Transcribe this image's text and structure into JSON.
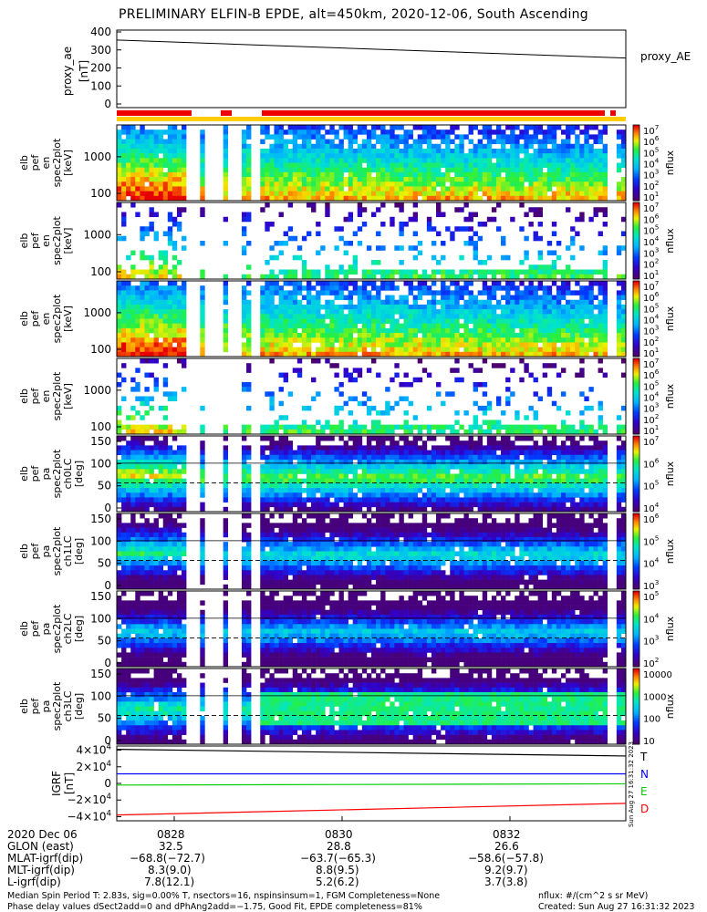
{
  "title": "PRELIMINARY ELFIN-B EPDE, alt=450km, 2020-12-06, South Ascending",
  "chart_data": {
    "type": "heatmap",
    "panels": [
      {
        "id": "proxy_ae",
        "ylabel": [
          "proxy_ae",
          "[nT]"
        ],
        "yticks": [
          "400",
          "300",
          "200",
          "100",
          "0"
        ],
        "series_name": "proxy_AE",
        "line": {
          "x": [
            0,
            1
          ],
          "y": [
            355,
            255
          ]
        }
      },
      {
        "id": "pef_en",
        "ylabel": [
          "elb",
          "pef",
          "en",
          "spec2plot",
          "[keV]"
        ],
        "yticks": [
          "1000",
          "100"
        ],
        "cb_ticks": [
          "10^7",
          "10^6",
          "10^5",
          "10^4",
          "10^3",
          "10^2",
          "10^1"
        ],
        "cb_label": "nflux"
      },
      {
        "id": "pef_perp",
        "ylabel": [
          "elb",
          "pef",
          "en",
          "spec2plot",
          "[keV]"
        ],
        "yticks": [
          "1000",
          "100"
        ],
        "cb_ticks": [
          "10^7",
          "10^6",
          "10^5",
          "10^4",
          "10^3",
          "10^2",
          "10^1"
        ],
        "cb_label": "nflux"
      },
      {
        "id": "pef_para",
        "ylabel": [
          "elb",
          "pef",
          "en",
          "spec2plot",
          "[keV]"
        ],
        "yticks": [
          "1000",
          "100"
        ],
        "cb_ticks": [
          "10^7",
          "10^6",
          "10^5",
          "10^4",
          "10^3",
          "10^2",
          "10^1"
        ],
        "cb_label": "nflux"
      },
      {
        "id": "pef_anti",
        "ylabel": [
          "elb",
          "pef",
          "en",
          "spec2plot",
          "[keV]"
        ],
        "yticks": [
          "1000",
          "100"
        ],
        "cb_ticks": [
          "10^7",
          "10^6",
          "10^5",
          "10^4",
          "10^3",
          "10^2",
          "10^1"
        ],
        "cb_label": "nflux"
      },
      {
        "id": "ch0",
        "ylabel": [
          "elb",
          "pef",
          "pa",
          "spec2plot",
          "ch0LC",
          "[deg]"
        ],
        "yticks": [
          "150",
          "100",
          "50",
          "0"
        ],
        "cb_ticks": [
          "10^7",
          "10^6",
          "10^5",
          "10^4"
        ],
        "cb_label": "nflux"
      },
      {
        "id": "ch1",
        "ylabel": [
          "elb",
          "pef",
          "pa",
          "spec2plot",
          "ch1LC",
          "[deg]"
        ],
        "yticks": [
          "150",
          "100",
          "50",
          "0"
        ],
        "cb_ticks": [
          "10^6",
          "10^5",
          "10^4",
          "10^3"
        ],
        "cb_label": "nflux"
      },
      {
        "id": "ch2",
        "ylabel": [
          "elb",
          "pef",
          "pa",
          "spec2plot",
          "ch2LC",
          "[deg]"
        ],
        "yticks": [
          "150",
          "100",
          "50",
          "0"
        ],
        "cb_ticks": [
          "10^5",
          "10^4",
          "10^3",
          "10^2"
        ],
        "cb_label": "nflux"
      },
      {
        "id": "ch3",
        "ylabel": [
          "elb",
          "pef",
          "pa",
          "spec2plot",
          "ch3LC",
          "[deg]"
        ],
        "yticks": [
          "150",
          "100",
          "50",
          "0"
        ],
        "cb_ticks": [
          "10000",
          "1000",
          "100",
          "10"
        ],
        "cb_label": "nflux"
      },
      {
        "id": "igrf",
        "ylabel": [
          "IGRF",
          "[nT]"
        ],
        "yticks": [
          "4×10^4",
          "2×10^4",
          "0",
          "−2×10^4",
          "−4×10^4"
        ],
        "legend": [
          "T",
          "N",
          "E",
          "D"
        ],
        "legend_colors": [
          "#000000",
          "#0000ff",
          "#00cc00",
          "#ff0000"
        ],
        "lines": [
          {
            "name": "T",
            "y": [
              41000,
              33000
            ]
          },
          {
            "name": "N",
            "y": [
              11500,
              11500
            ]
          },
          {
            "name": "E",
            "y": [
              -2000,
              -500
            ]
          },
          {
            "name": "D",
            "y": [
              -38000,
              -24000
            ]
          }
        ],
        "ylim": [
          -45000,
          45000
        ]
      }
    ],
    "x_ticks": [
      "0828",
      "0830",
      "0832"
    ],
    "side_stamp": "Sun Aug 27 16:31:32 2023"
  },
  "orbit_table": {
    "row_labels": [
      "2020 Dec 06",
      "GLON (east)",
      "MLAT-igrf(dip)",
      "MLT-igrf(dip)",
      "L-igrf(dip)"
    ],
    "columns": [
      [
        "0828",
        "32.5",
        "−68.8(−72.7)",
        "8.3(9.0)",
        "7.8(12.1)"
      ],
      [
        "0830",
        "28.8",
        "−63.7(−65.3)",
        "8.8(9.5)",
        "5.2(6.2)"
      ],
      [
        "0832",
        "26.6",
        "−58.6(−57.8)",
        "9.2(9.7)",
        "3.7(3.8)"
      ]
    ]
  },
  "footer": {
    "left1": "Median Spin Period T: 2.83s, sig=0.00% T, nsectors=16, nspinsinsum=1, FGM Completeness=None",
    "left2": "Phase delay values dSect2add=0 and dPhAng2add=−1.75, Good Fit, EPDE completeness=81%",
    "right1": "nflux: #/(cm^2 s sr MeV)",
    "right2": "Created: Sun Aug 27 16:31:32 2023"
  }
}
